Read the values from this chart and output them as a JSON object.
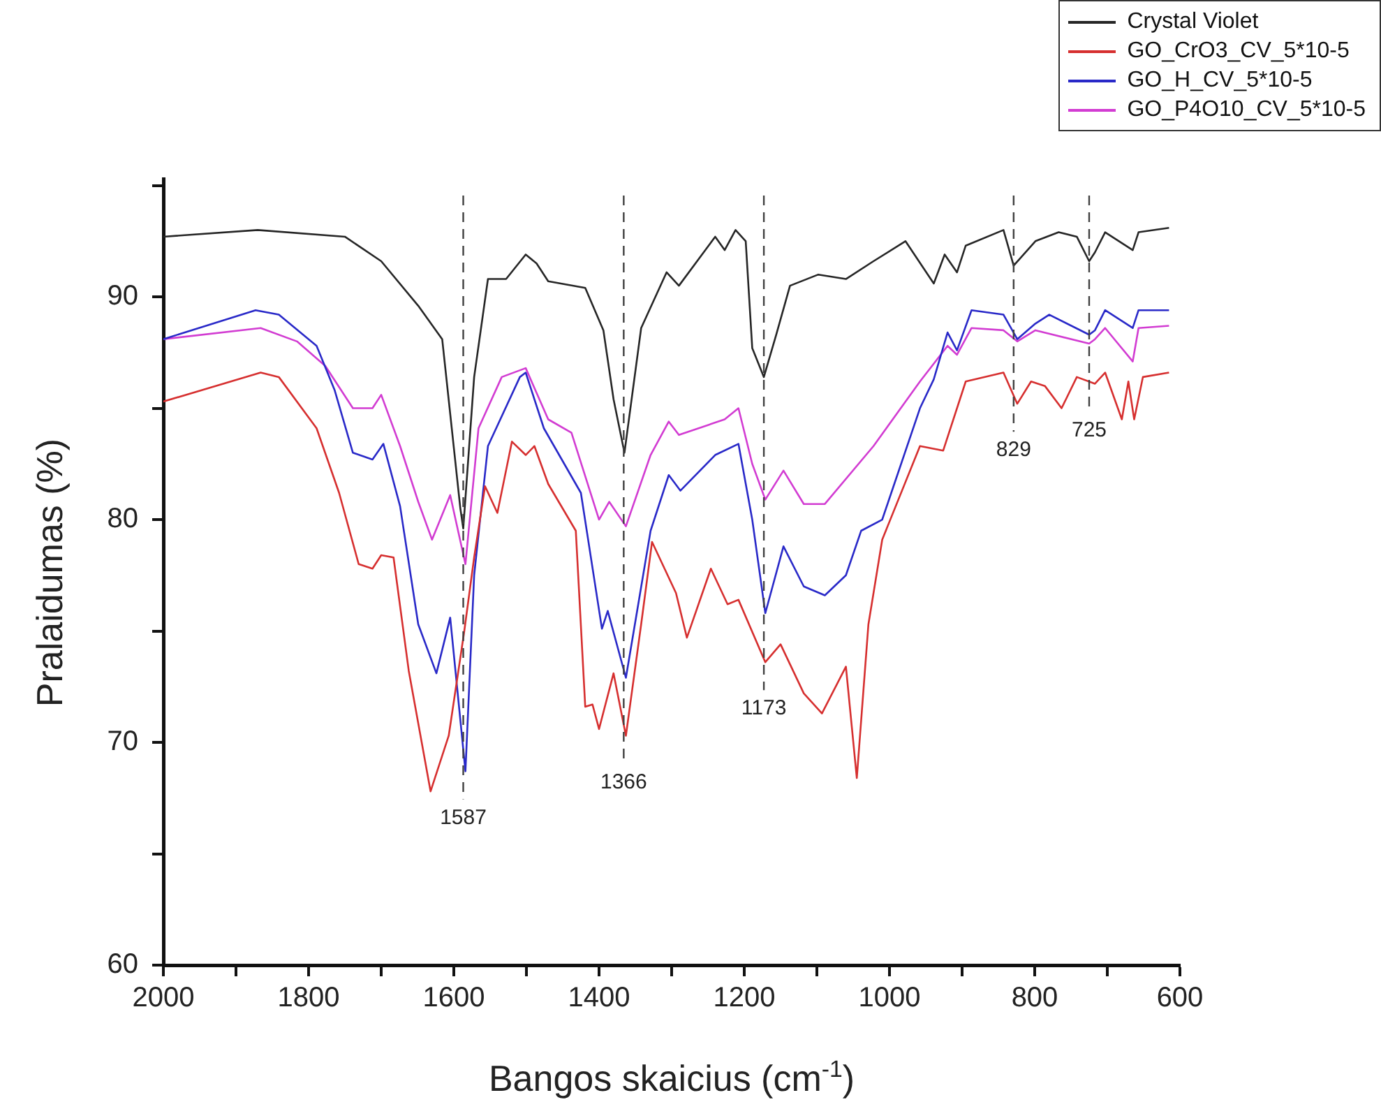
{
  "chart_data": {
    "type": "line",
    "xlabel": "Bangos skaicius (cm$^{-1}$)",
    "ylabel": "Pralaidumas (%)",
    "xlim": [
      2000,
      600
    ],
    "xticks": [
      2000,
      {
        "value": 1900,
        "label": null
      },
      1800,
      {
        "value": 1700,
        "label": null
      },
      1600,
      {
        "value": 1500,
        "label": null
      },
      1400,
      {
        "value": 1300,
        "label": null
      },
      1200,
      {
        "value": 1100,
        "label": null
      },
      1000,
      {
        "value": 900,
        "label": null
      },
      800,
      {
        "value": 700,
        "label": null
      },
      600
    ],
    "ylim": [
      60,
      95.3
    ],
    "yticks": [
      60,
      {
        "value": 65,
        "label": null
      },
      70,
      {
        "value": 75,
        "label": null
      },
      80,
      {
        "value": 85,
        "label": null
      },
      90,
      {
        "value": 95,
        "label": null
      }
    ],
    "grid": false,
    "legend": "top right",
    "marker": "none",
    "line_style": "solid",
    "ref_lines": [
      {
        "axis": "x",
        "value": 1587,
        "label": "1587",
        "line_style": "dashed",
        "color": "#404040"
      },
      {
        "axis": "x",
        "value": 1366,
        "label": "1366",
        "line_style": "dashed",
        "color": "#404040"
      },
      {
        "axis": "x",
        "value": 1173,
        "label": "1173",
        "line_style": "dashed",
        "color": "#404040"
      },
      {
        "axis": "x",
        "value": 829,
        "label": "829",
        "line_style": "dashed",
        "color": "#404040"
      },
      {
        "axis": "x",
        "value": 725,
        "label": "725",
        "line_style": "dashed",
        "color": "#404040"
      }
    ],
    "series": [
      {
        "name": "Crystal Violet",
        "color": "#262626",
        "x": [
          2000,
          1870,
          1750,
          1700,
          1649,
          1616,
          1591,
          1587,
          1572,
          1553,
          1528,
          1501,
          1486,
          1470,
          1419,
          1394,
          1380,
          1365,
          1342,
          1307,
          1290,
          1240,
          1227,
          1212,
          1198,
          1189,
          1173,
          1156,
          1137,
          1098,
          1060,
          1022,
          978,
          939,
          924,
          907,
          895,
          843,
          829,
          799,
          767,
          742,
          725,
          717,
          703,
          665,
          657,
          615
        ],
        "values": [
          92.7,
          93.0,
          92.7,
          91.6,
          89.6,
          88.1,
          80.5,
          79.6,
          86.4,
          90.8,
          90.8,
          91.9,
          91.5,
          90.7,
          90.4,
          88.5,
          85.4,
          83.0,
          88.6,
          91.1,
          90.5,
          92.7,
          92.1,
          93.0,
          92.5,
          87.7,
          86.4,
          88.3,
          90.5,
          91.0,
          90.8,
          91.6,
          92.5,
          90.6,
          91.9,
          91.1,
          92.3,
          93.0,
          91.4,
          92.5,
          92.9,
          92.7,
          91.6,
          92.0,
          92.9,
          92.1,
          92.9,
          93.1
        ]
      },
      {
        "name": "GO_CrO3_CV_5*10-5",
        "color": "#d62f2f",
        "x": [
          2000,
          1866,
          1841,
          1789,
          1758,
          1731,
          1712,
          1700,
          1683,
          1662,
          1632,
          1607,
          1586,
          1572,
          1557,
          1540,
          1520,
          1501,
          1489,
          1470,
          1432,
          1419,
          1409,
          1400,
          1380,
          1363,
          1342,
          1327,
          1294,
          1279,
          1246,
          1223,
          1208,
          1171,
          1150,
          1118,
          1093,
          1060,
          1045,
          1029,
          1010,
          958,
          926,
          895,
          843,
          824,
          805,
          786,
          763,
          742,
          717,
          703,
          680,
          671,
          663,
          651,
          615
        ],
        "values": [
          85.3,
          86.6,
          86.4,
          84.1,
          81.2,
          78.0,
          77.8,
          78.4,
          78.3,
          73.2,
          67.8,
          70.3,
          74.9,
          78.3,
          81.5,
          80.3,
          83.5,
          82.9,
          83.3,
          81.6,
          79.5,
          71.6,
          71.7,
          70.6,
          73.1,
          70.3,
          75.3,
          79.0,
          76.7,
          74.7,
          77.8,
          76.2,
          76.4,
          73.6,
          74.4,
          72.2,
          71.3,
          73.4,
          68.4,
          75.3,
          79.1,
          83.3,
          83.1,
          86.2,
          86.6,
          85.2,
          86.2,
          86.0,
          85.0,
          86.4,
          86.1,
          86.6,
          84.5,
          86.2,
          84.5,
          86.4,
          86.6
        ]
      },
      {
        "name": "GO_H_CV_5*10-5",
        "color": "#2929c8",
        "x": [
          2000,
          1873,
          1841,
          1789,
          1764,
          1739,
          1712,
          1697,
          1674,
          1649,
          1624,
          1605,
          1584,
          1572,
          1553,
          1509,
          1501,
          1476,
          1425,
          1396,
          1388,
          1363,
          1329,
          1304,
          1288,
          1240,
          1208,
          1189,
          1171,
          1146,
          1118,
          1089,
          1060,
          1039,
          1010,
          958,
          939,
          920,
          907,
          887,
          843,
          824,
          799,
          780,
          725,
          717,
          703,
          665,
          657,
          615
        ],
        "values": [
          88.1,
          89.4,
          89.2,
          87.8,
          85.8,
          83.0,
          82.7,
          83.4,
          80.6,
          75.3,
          73.1,
          75.6,
          68.7,
          77.5,
          83.3,
          86.4,
          86.6,
          84.1,
          81.2,
          75.1,
          75.9,
          72.9,
          79.5,
          82.0,
          81.3,
          82.9,
          83.4,
          80.0,
          75.8,
          78.8,
          77.0,
          76.6,
          77.5,
          79.5,
          80.0,
          85.0,
          86.3,
          88.4,
          87.6,
          89.4,
          89.2,
          88.1,
          88.8,
          89.2,
          88.3,
          88.5,
          89.4,
          88.6,
          89.4,
          89.4
        ]
      },
      {
        "name": "GO_P4O10_CV_5*10-5",
        "color": "#d23cd2",
        "x": [
          2000,
          1866,
          1816,
          1777,
          1739,
          1712,
          1700,
          1674,
          1649,
          1630,
          1605,
          1584,
          1566,
          1534,
          1501,
          1470,
          1438,
          1400,
          1386,
          1363,
          1329,
          1304,
          1290,
          1227,
          1208,
          1189,
          1171,
          1146,
          1118,
          1089,
          1022,
          958,
          920,
          907,
          887,
          843,
          824,
          799,
          725,
          717,
          703,
          665,
          657,
          615
        ],
        "values": [
          88.1,
          88.6,
          88.0,
          86.9,
          85.0,
          85.0,
          85.6,
          83.3,
          80.8,
          79.1,
          81.1,
          78.0,
          84.1,
          86.4,
          86.8,
          84.5,
          83.9,
          80.0,
          80.8,
          79.7,
          82.9,
          84.4,
          83.8,
          84.5,
          85.0,
          82.5,
          80.9,
          82.2,
          80.7,
          80.7,
          83.3,
          86.2,
          87.8,
          87.4,
          88.6,
          88.5,
          88.0,
          88.5,
          87.9,
          88.1,
          88.6,
          87.1,
          88.6,
          88.7
        ]
      }
    ]
  }
}
